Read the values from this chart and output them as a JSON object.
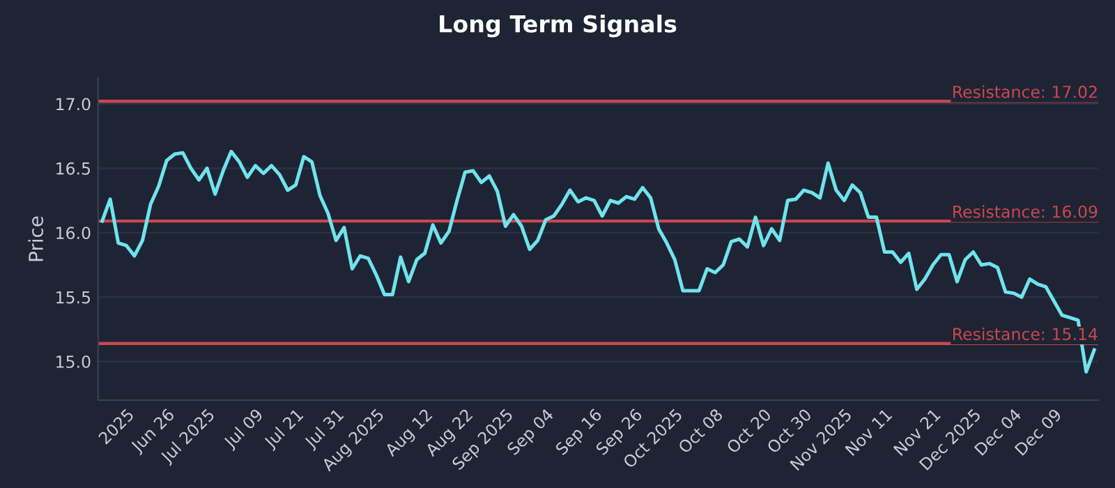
{
  "chart_data": {
    "type": "line",
    "title": "Long Term Signals",
    "ylabel": "Price",
    "categories": [
      null,
      null,
      null,
      "2025",
      null,
      null,
      null,
      null,
      "Jun 26",
      null,
      null,
      null,
      null,
      "Jul 2025",
      null,
      null,
      null,
      null,
      null,
      "Jul 09",
      null,
      null,
      null,
      null,
      "Jul 21",
      null,
      null,
      null,
      null,
      "Jul 31",
      null,
      null,
      null,
      null,
      "Aug 2025",
      null,
      null,
      null,
      null,
      null,
      "Aug 12",
      null,
      null,
      null,
      null,
      "Aug 22",
      null,
      null,
      null,
      null,
      "Sep 2025",
      null,
      null,
      null,
      null,
      "Sep 04",
      null,
      null,
      null,
      null,
      null,
      "Sep 16",
      null,
      null,
      null,
      null,
      "Sep 26",
      null,
      null,
      null,
      null,
      "Oct 2025",
      null,
      null,
      null,
      null,
      "Oct 08",
      null,
      null,
      null,
      null,
      null,
      "Oct 20",
      null,
      null,
      null,
      null,
      "Oct 30",
      null,
      null,
      null,
      null,
      "Nov 2025",
      null,
      null,
      null,
      null,
      "Nov 11",
      null,
      null,
      null,
      null,
      null,
      "Nov 21",
      null,
      null,
      null,
      null,
      "Dec 2025",
      null,
      null,
      null,
      null,
      "Dec 04",
      null,
      null,
      null,
      null,
      "Dec 09",
      null,
      null,
      null,
      null,
      null
    ],
    "series": [
      {
        "color": "#6fe3ee",
        "values": [
          16.09,
          16.26,
          15.92,
          15.9,
          15.82,
          15.94,
          16.22,
          16.36,
          16.56,
          16.61,
          16.62,
          16.5,
          16.41,
          16.5,
          16.3,
          16.48,
          16.63,
          16.55,
          16.43,
          16.52,
          16.46,
          16.52,
          16.45,
          16.33,
          16.37,
          16.59,
          16.55,
          16.29,
          16.15,
          15.94,
          16.04,
          15.72,
          15.82,
          15.8,
          15.67,
          15.52,
          15.52,
          15.81,
          15.62,
          15.79,
          15.84,
          16.06,
          15.92,
          16.01,
          16.25,
          16.47,
          16.48,
          16.39,
          16.44,
          16.32,
          16.05,
          16.14,
          16.05,
          15.87,
          15.94,
          16.1,
          16.13,
          16.22,
          16.33,
          16.24,
          16.27,
          16.25,
          16.13,
          16.25,
          16.23,
          16.28,
          16.26,
          16.35,
          16.27,
          16.03,
          15.92,
          15.79,
          15.55,
          15.55,
          15.55,
          15.72,
          15.69,
          15.75,
          15.93,
          15.95,
          15.89,
          16.12,
          15.9,
          16.03,
          15.94,
          16.25,
          16.26,
          16.33,
          16.31,
          16.27,
          16.54,
          16.33,
          16.25,
          16.37,
          16.31,
          16.12,
          16.12,
          15.85,
          15.85,
          15.77,
          15.84,
          15.56,
          15.64,
          15.75,
          15.83,
          15.83,
          15.62,
          15.79,
          15.85,
          15.75,
          15.76,
          15.73,
          15.54,
          15.53,
          15.5,
          15.64,
          15.6,
          15.58,
          15.47,
          15.36,
          15.34,
          15.32,
          14.92,
          15.09
        ]
      }
    ],
    "ylim": [
      14.7,
      17.2
    ],
    "yticks": [
      {
        "value": 15,
        "label": "15.0"
      },
      {
        "value": 15.5,
        "label": "15.5"
      },
      {
        "value": 16,
        "label": "16.0"
      },
      {
        "value": 16.5,
        "label": "16.5"
      },
      {
        "value": 17,
        "label": "17.0"
      }
    ],
    "ref_lines": [
      {
        "axis": "y",
        "value": 17.02,
        "label": "Resistance: 17.02",
        "color": "#c9474f"
      },
      {
        "axis": "y",
        "value": 16.09,
        "label": "Resistance: 16.09",
        "color": "#c9474f"
      },
      {
        "axis": "y",
        "value": 15.14,
        "label": "Resistance: 15.14",
        "color": "#c9474f"
      }
    ],
    "grid": "y",
    "legend": false,
    "marker": "none",
    "line_style": "solid"
  }
}
